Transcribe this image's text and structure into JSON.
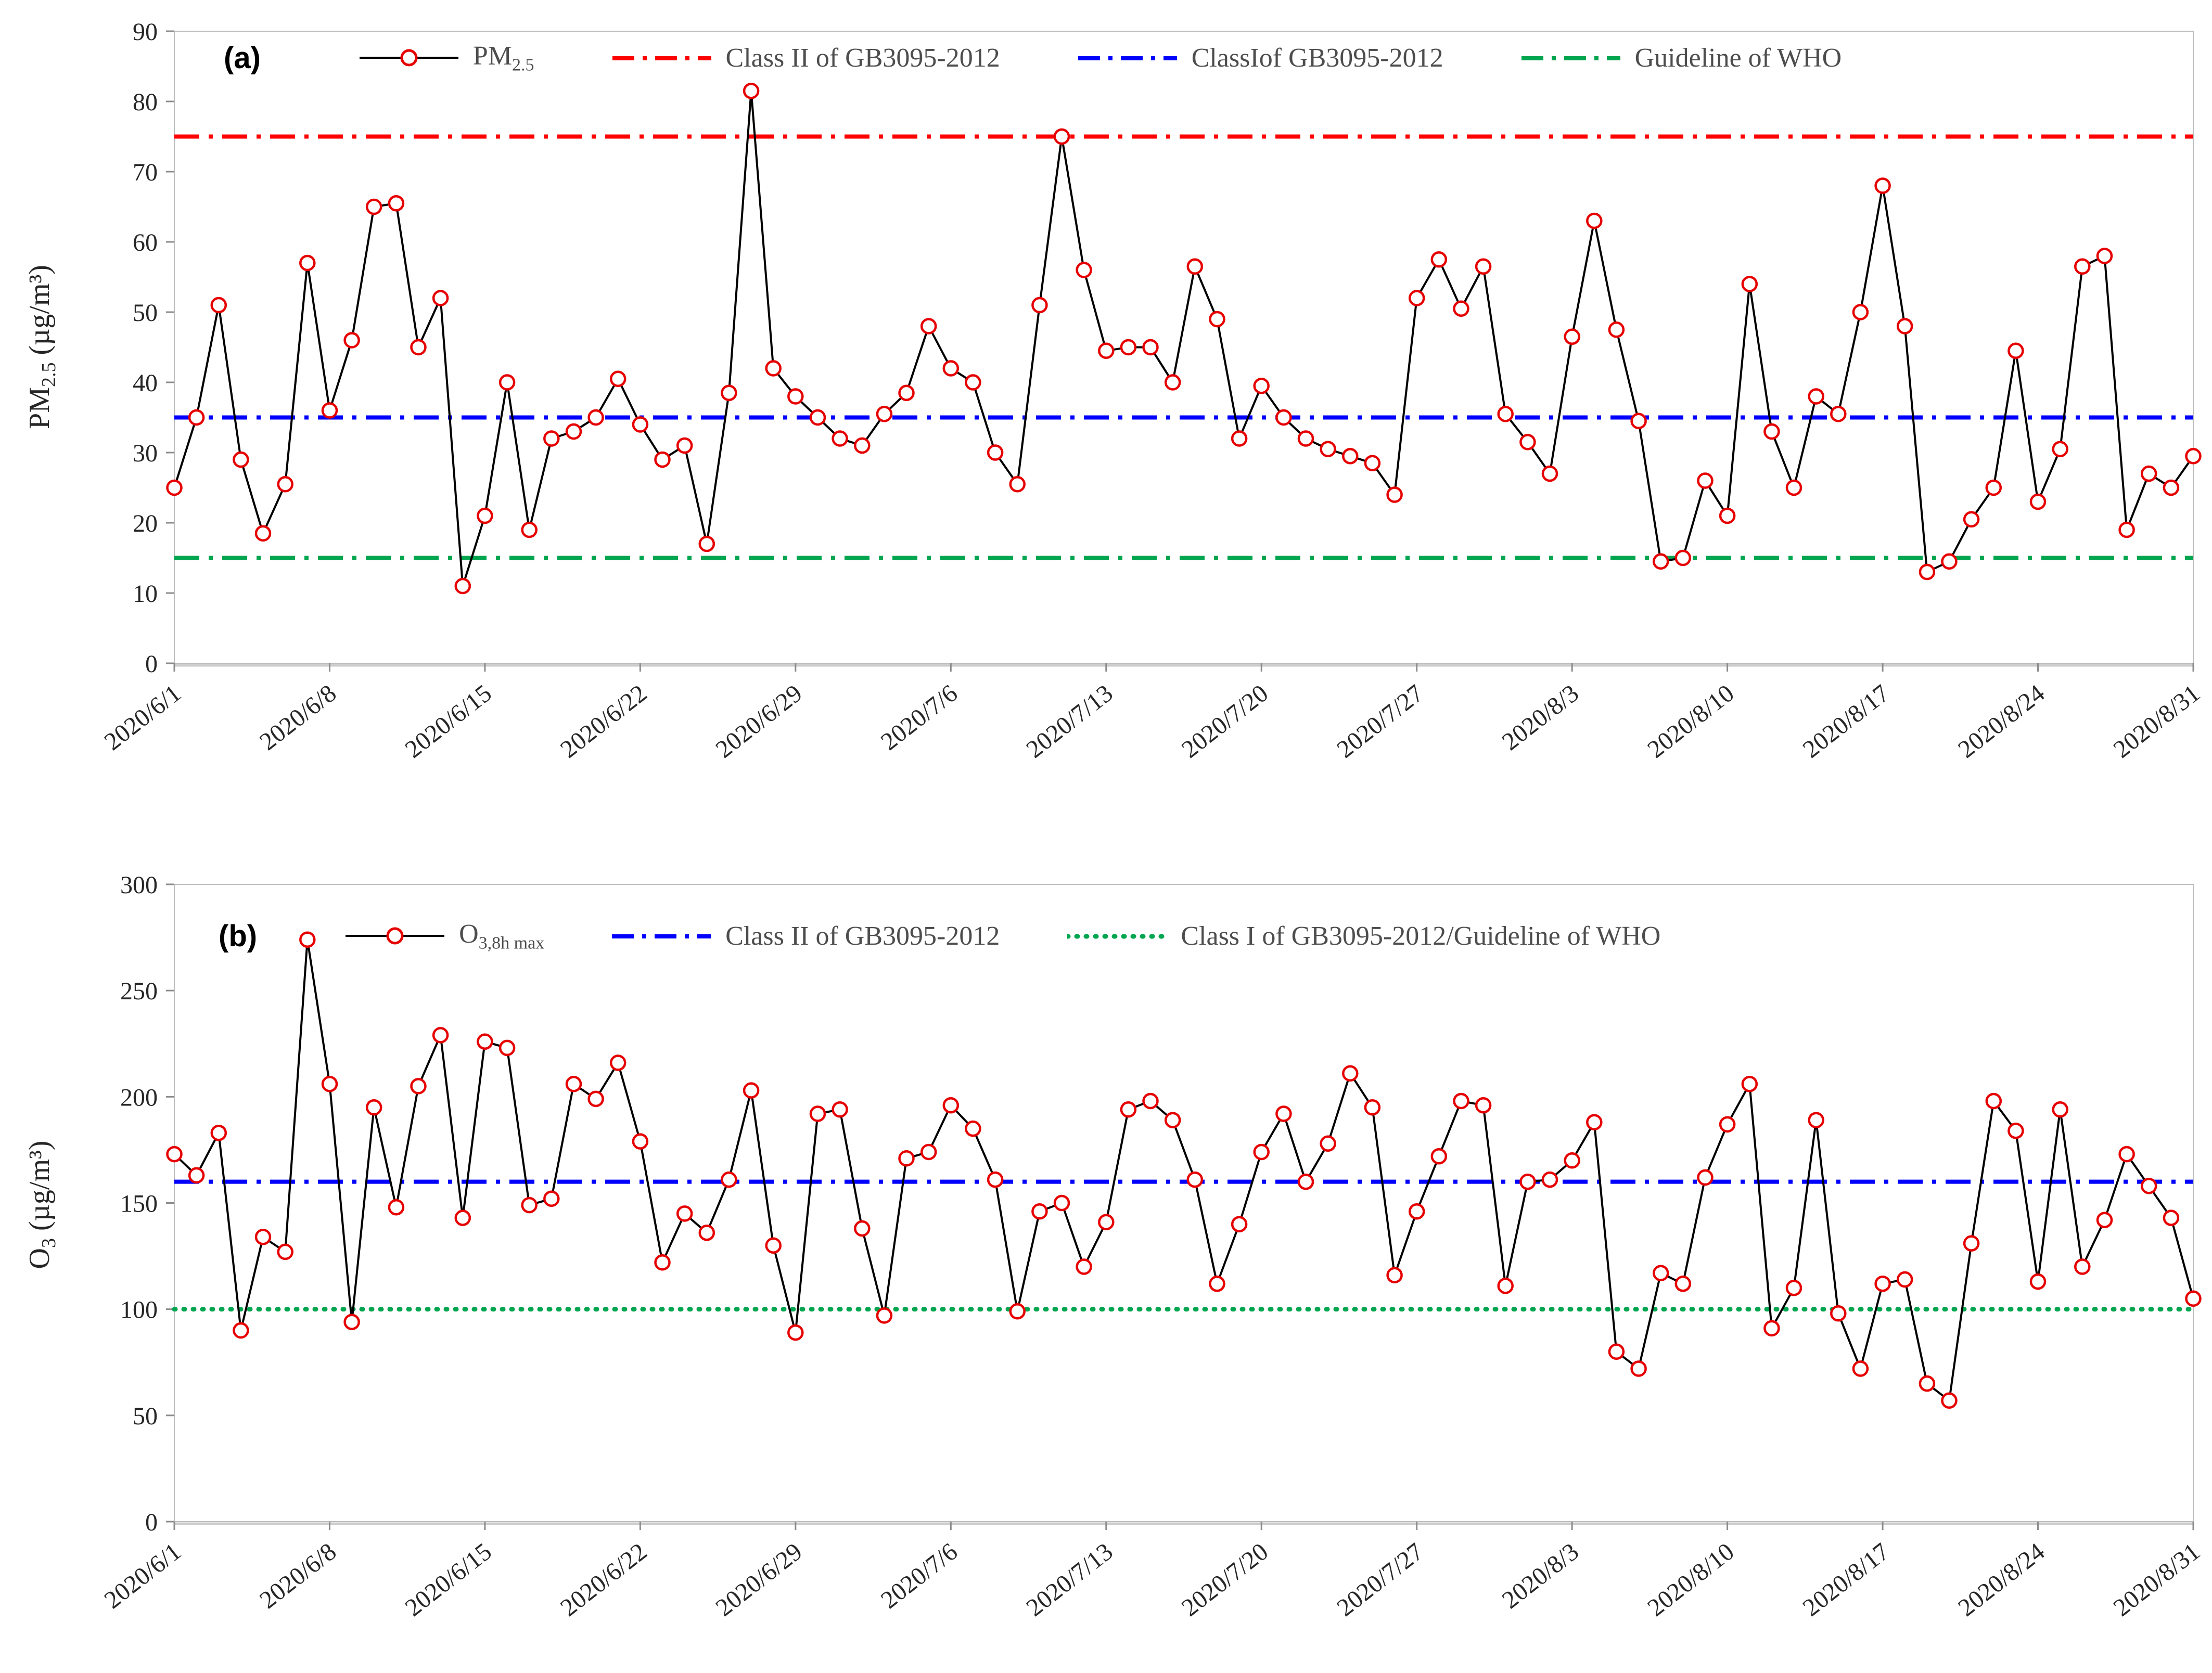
{
  "figure": {
    "background": "#ffffff",
    "text_color": "#262626",
    "legend_text_color": "#4d4d4d"
  },
  "chart_data": [
    {
      "type": "line",
      "panel_label": "(a)",
      "title": "",
      "xlabel": "",
      "ylabel_main": "PM",
      "ylabel_sub": "2.5",
      "ylabel_rest": " (µg/m³)",
      "ylim": [
        0,
        90
      ],
      "y_ticks": [
        0,
        10,
        20,
        30,
        40,
        50,
        60,
        70,
        80,
        90
      ],
      "x_tick_labels": [
        "2020/6/1",
        "2020/6/8",
        "2020/6/15",
        "2020/6/22",
        "2020/6/29",
        "2020/7/6",
        "2020/7/13",
        "2020/7/20",
        "2020/7/27",
        "2020/8/3",
        "2020/8/10",
        "2020/8/17",
        "2020/8/24",
        "2020/8/31"
      ],
      "x_tick_indices": [
        0,
        7,
        14,
        21,
        28,
        35,
        42,
        49,
        56,
        63,
        70,
        77,
        84,
        91
      ],
      "legend_position": "top",
      "grid": false,
      "series": [
        {
          "name": "PM2.5",
          "name_main": "PM",
          "name_sub": "2.5",
          "line_color": "#000000",
          "marker_color": "#e60000",
          "values": [
            25,
            35,
            51,
            29,
            18.5,
            25.5,
            57,
            36,
            46,
            65,
            65.5,
            45,
            52,
            11,
            21,
            40,
            19,
            32,
            33,
            35,
            40.5,
            34,
            29,
            31,
            17,
            38.5,
            81.5,
            42,
            38,
            35,
            32,
            31,
            35.5,
            38.5,
            48,
            42,
            40,
            30,
            25.5,
            51,
            75,
            56,
            44.5,
            45,
            45,
            40,
            56.5,
            49,
            32,
            39.5,
            35,
            32,
            30.5,
            29.5,
            28.5,
            24,
            52,
            57.5,
            50.5,
            56.5,
            35.5,
            31.5,
            27,
            46.5,
            63,
            47.5,
            34.5,
            14.5,
            15,
            26,
            21,
            54,
            33,
            25,
            38,
            35.5,
            50,
            68,
            48,
            13,
            14.5,
            20.5,
            25,
            44.5,
            23,
            30.5,
            56.5,
            58,
            19,
            27,
            25,
            29.5
          ]
        }
      ],
      "reference_lines": [
        {
          "label": "Class II of GB3095-2012",
          "value": 75,
          "color": "#ff0000",
          "style": "dashdot"
        },
        {
          "label": "ClassIof GB3095-2012",
          "value": 35,
          "color": "#0000ff",
          "style": "dashdot"
        },
        {
          "label": "Guideline of WHO",
          "value": 15,
          "color": "#00a550",
          "style": "dashdot"
        }
      ]
    },
    {
      "type": "line",
      "panel_label": "(b)",
      "title": "",
      "xlabel": "",
      "ylabel_main": "O",
      "ylabel_sub": "3",
      "ylabel_rest": " (µg/m³)",
      "ylim": [
        0,
        300
      ],
      "y_ticks": [
        0,
        50,
        100,
        150,
        200,
        250,
        300
      ],
      "x_tick_labels": [
        "2020/6/1",
        "2020/6/8",
        "2020/6/15",
        "2020/6/22",
        "2020/6/29",
        "2020/7/6",
        "2020/7/13",
        "2020/7/20",
        "2020/7/27",
        "2020/8/3",
        "2020/8/10",
        "2020/8/17",
        "2020/8/24",
        "2020/8/31"
      ],
      "x_tick_indices": [
        0,
        7,
        14,
        21,
        28,
        35,
        42,
        49,
        56,
        63,
        70,
        77,
        84,
        91
      ],
      "legend_position": "top",
      "grid": false,
      "series": [
        {
          "name": "O3,8h max",
          "name_main": "O",
          "name_sub": "3,8h max",
          "line_color": "#000000",
          "marker_color": "#e60000",
          "values": [
            173,
            163,
            183,
            90,
            134,
            127,
            274,
            206,
            94,
            195,
            148,
            205,
            229,
            143,
            226,
            223,
            149,
            152,
            206,
            199,
            216,
            179,
            122,
            145,
            136,
            161,
            203,
            130,
            89,
            192,
            194,
            138,
            97,
            171,
            174,
            196,
            185,
            161,
            99,
            146,
            150,
            120,
            141,
            194,
            198,
            189,
            161,
            112,
            140,
            174,
            192,
            160,
            178,
            211,
            195,
            116,
            146,
            172,
            198,
            196,
            111,
            160,
            161,
            170,
            188,
            80,
            72,
            117,
            112,
            162,
            187,
            206,
            91,
            110,
            189,
            98,
            72,
            112,
            114,
            65,
            57,
            131,
            198,
            184,
            113,
            194,
            120,
            142,
            173,
            158,
            143,
            105
          ]
        }
      ],
      "reference_lines": [
        {
          "label": "Class II of GB3095-2012",
          "value": 160,
          "color": "#0000ff",
          "style": "dashdot"
        },
        {
          "label": "Class I of  GB3095-2012/Guideline of WHO",
          "value": 100,
          "color": "#00a550",
          "style": "dotted"
        }
      ]
    }
  ]
}
